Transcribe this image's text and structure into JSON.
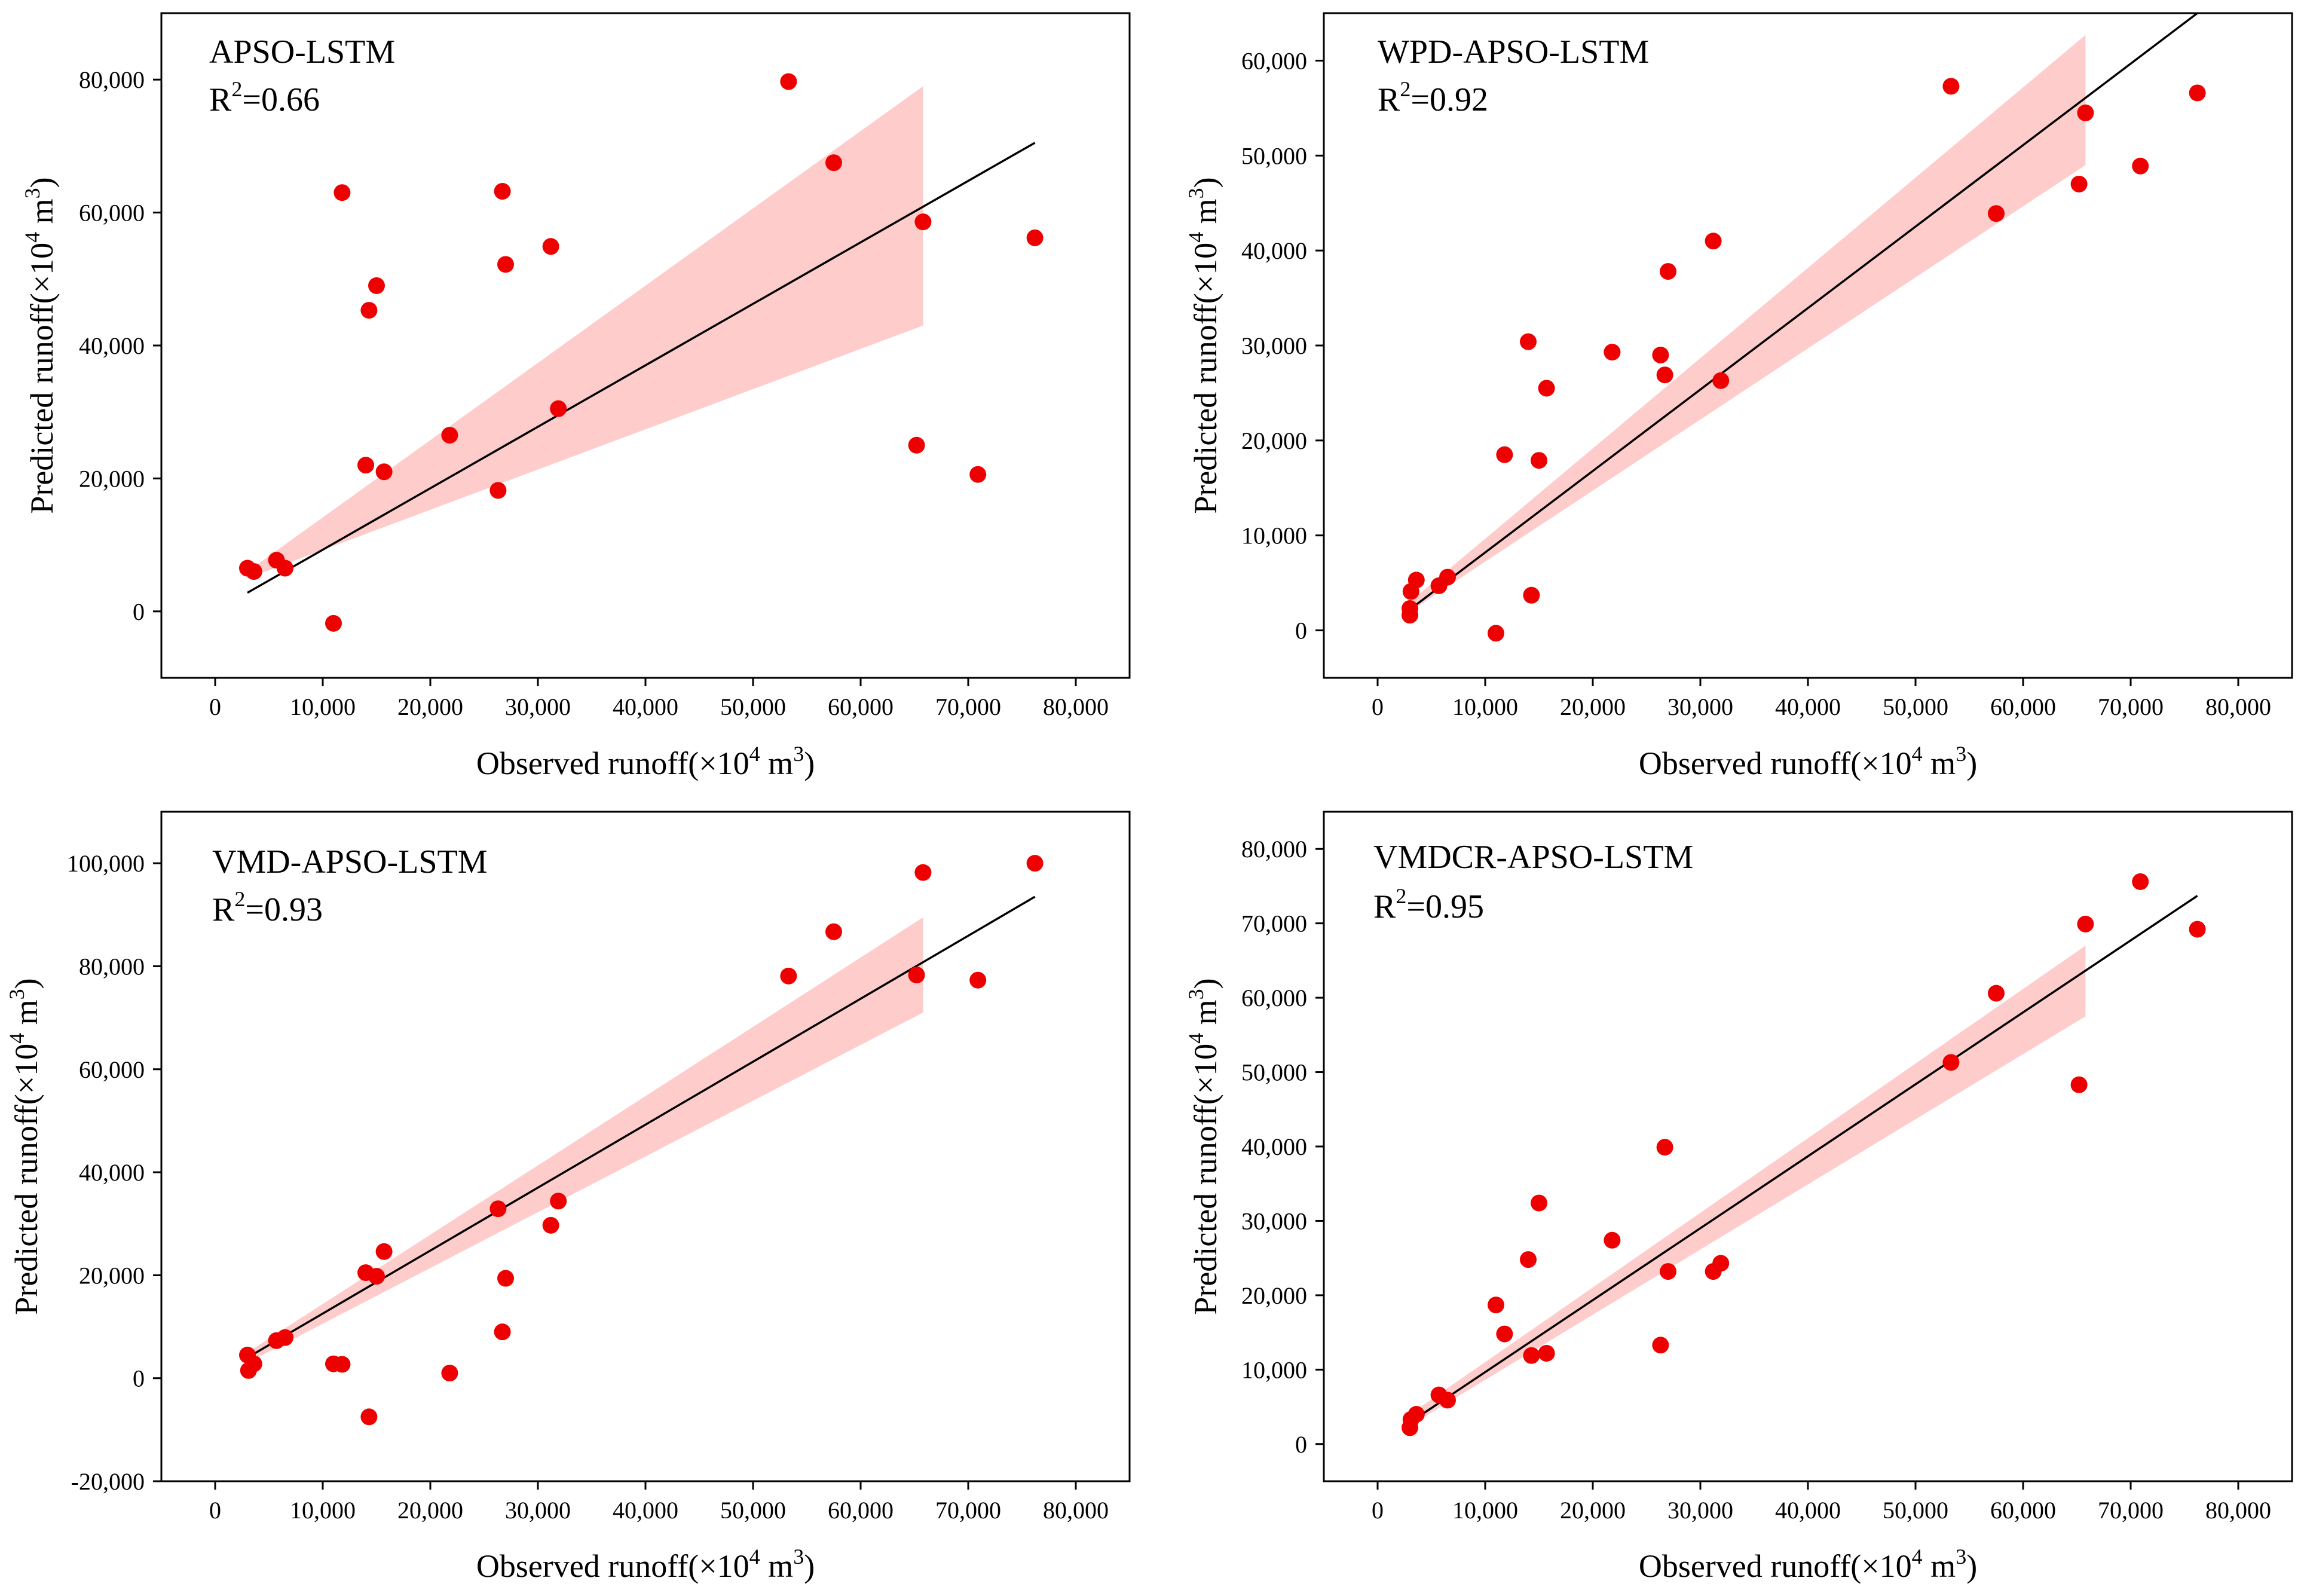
{
  "figure": {
    "point_color": "#ee0000",
    "band_color": "#ffcccc",
    "fit_line_color": "#000000"
  },
  "chart_data": [
    {
      "type": "scatter",
      "title": "APSO-LSTM",
      "r2_label": "R",
      "r2_sup": "2",
      "r2_value": "=0.66",
      "xlabel": "Observed runoff(×10",
      "xlabel_sup": "4",
      "xlabel_unit": " m",
      "xlabel_unit_sup": "3",
      "xlabel_close": ")",
      "ylabel": "Predicted runoff(×10",
      "ylabel_sup": "4",
      "ylabel_unit": " m",
      "ylabel_unit_sup": "3",
      "ylabel_close": ")",
      "xlim": [
        -5000,
        85000
      ],
      "ylim": [
        -10000,
        90000
      ],
      "xticks": [
        0,
        10000,
        20000,
        30000,
        40000,
        50000,
        60000,
        70000,
        80000
      ],
      "xtick_labels": [
        "0",
        "10,000",
        "20,000",
        "30,000",
        "40,000",
        "50,000",
        "60,000",
        "70,000",
        "80,000"
      ],
      "yticks": [
        0,
        20000,
        40000,
        60000,
        80000
      ],
      "ytick_labels": [
        "0",
        "20,000",
        "40,000",
        "60,000",
        "80,000"
      ],
      "x": [
        3000,
        3600,
        5700,
        6500,
        11000,
        11800,
        14000,
        14300,
        15000,
        15700,
        21800,
        26300,
        26700,
        27000,
        31200,
        31900,
        53300,
        57500,
        65200,
        65800,
        70900,
        76200
      ],
      "y": [
        6500,
        6000,
        7700,
        6500,
        -1800,
        63000,
        22000,
        45300,
        49000,
        21000,
        26500,
        18200,
        63200,
        52200,
        54900,
        30500,
        79700,
        67500,
        25000,
        58600,
        20600,
        56200
      ],
      "fit": {
        "x": [
          3000,
          76200
        ],
        "y": [
          2800,
          70500
        ]
      },
      "band": {
        "x_start": 3000,
        "x_end": 65800,
        "upper": [
          6000,
          79000
        ],
        "lower": [
          5000,
          43000
        ]
      }
    },
    {
      "type": "scatter",
      "title": "WPD-APSO-LSTM",
      "r2_label": "R",
      "r2_sup": "2",
      "r2_value": "=0.92",
      "xlabel": "Observed runoff(×10",
      "xlabel_sup": "4",
      "xlabel_unit": " m",
      "xlabel_unit_sup": "3",
      "xlabel_close": ")",
      "ylabel": "Predicted runoff(×10",
      "ylabel_sup": "4",
      "ylabel_unit": " m",
      "ylabel_unit_sup": "3",
      "ylabel_close": ")",
      "xlim": [
        -5000,
        85000
      ],
      "ylim": [
        -5000,
        65000
      ],
      "xticks": [
        0,
        10000,
        20000,
        30000,
        40000,
        50000,
        60000,
        70000,
        80000
      ],
      "xtick_labels": [
        "0",
        "10,000",
        "20,000",
        "30,000",
        "40,000",
        "50,000",
        "60,000",
        "70,000",
        "80,000"
      ],
      "yticks": [
        0,
        10000,
        20000,
        30000,
        40000,
        50000,
        60000
      ],
      "ytick_labels": [
        "0",
        "10,000",
        "20,000",
        "30,000",
        "40,000",
        "50,000",
        "60,000"
      ],
      "x": [
        3000,
        3000,
        3100,
        3600,
        5700,
        6500,
        11000,
        11800,
        14000,
        14300,
        15000,
        15700,
        21800,
        26300,
        26700,
        27000,
        31200,
        31900,
        53300,
        57500,
        65200,
        65800,
        70900,
        76200
      ],
      "y": [
        1600,
        2300,
        4100,
        5300,
        4700,
        5600,
        -300,
        18500,
        30400,
        3700,
        17900,
        25500,
        29300,
        29000,
        26900,
        37800,
        41000,
        26300,
        57300,
        43900,
        47000,
        54500,
        48900,
        56600
      ],
      "fit": {
        "x": [
          3000,
          76200
        ],
        "y": [
          2200,
          65000
        ]
      },
      "band": {
        "x_start": 3000,
        "x_end": 65800,
        "upper": [
          3000,
          62700
        ],
        "lower": [
          2000,
          49000
        ]
      }
    },
    {
      "type": "scatter",
      "title": "VMD-APSO-LSTM",
      "r2_label": "R",
      "r2_sup": "2",
      "r2_value": "=0.93",
      "xlabel": "Observed runoff(×10",
      "xlabel_sup": "4",
      "xlabel_unit": " m",
      "xlabel_unit_sup": "3",
      "xlabel_close": ")",
      "ylabel": "Predicted runoff(×10",
      "ylabel_sup": "4",
      "ylabel_unit": " m",
      "ylabel_unit_sup": "3",
      "ylabel_close": ")",
      "xlim": [
        -5000,
        85000
      ],
      "ylim": [
        -20000,
        110000
      ],
      "xticks": [
        0,
        10000,
        20000,
        30000,
        40000,
        50000,
        60000,
        70000,
        80000
      ],
      "xtick_labels": [
        "0",
        "10,000",
        "20,000",
        "30,000",
        "40,000",
        "50,000",
        "60,000",
        "70,000",
        "80,000"
      ],
      "yticks": [
        -20000,
        0,
        20000,
        40000,
        60000,
        80000,
        100000
      ],
      "ytick_labels": [
        "-20,000",
        "0",
        "20,000",
        "40,000",
        "60,000",
        "80,000",
        "100,000"
      ],
      "x": [
        3000,
        3100,
        3600,
        5700,
        6500,
        11000,
        11800,
        14000,
        14300,
        15000,
        15700,
        21800,
        26300,
        26700,
        27000,
        31200,
        31900,
        53300,
        57500,
        65200,
        65800,
        70900,
        76200
      ],
      "y": [
        4500,
        1500,
        2800,
        7300,
        7900,
        2800,
        2700,
        20500,
        -7500,
        19800,
        24600,
        1000,
        32900,
        9000,
        19400,
        29700,
        34400,
        78100,
        86700,
        78300,
        98200,
        77300,
        100000
      ],
      "fit": {
        "x": [
          3000,
          76200
        ],
        "y": [
          4000,
          93500
        ]
      },
      "band": {
        "x_start": 3000,
        "x_end": 65800,
        "upper": [
          5000,
          89500
        ],
        "lower": [
          3000,
          71000
        ]
      }
    },
    {
      "type": "scatter",
      "title": "VMDCR-APSO-LSTM",
      "r2_label": "R",
      "r2_sup": "2",
      "r2_value": "=0.95",
      "xlabel": "Observed runoff(×10",
      "xlabel_sup": "4",
      "xlabel_unit": " m",
      "xlabel_unit_sup": "3",
      "xlabel_close": ")",
      "ylabel": "Predicted runoff(×10",
      "ylabel_sup": "4",
      "ylabel_unit": " m",
      "ylabel_unit_sup": "3",
      "ylabel_close": ")",
      "xlim": [
        -5000,
        85000
      ],
      "ylim": [
        -5000,
        85000
      ],
      "xticks": [
        0,
        10000,
        20000,
        30000,
        40000,
        50000,
        60000,
        70000,
        80000
      ],
      "xtick_labels": [
        "0",
        "10,000",
        "20,000",
        "30,000",
        "40,000",
        "50,000",
        "60,000",
        "70,000",
        "80,000"
      ],
      "yticks": [
        0,
        10000,
        20000,
        30000,
        40000,
        50000,
        60000,
        70000,
        80000
      ],
      "ytick_labels": [
        "0",
        "10,000",
        "20,000",
        "30,000",
        "40,000",
        "50,000",
        "60,000",
        "70,000",
        "80,000"
      ],
      "x": [
        3000,
        3100,
        3600,
        5700,
        6500,
        11000,
        11800,
        14000,
        14300,
        15000,
        15700,
        21800,
        26300,
        26700,
        27000,
        31200,
        31900,
        53300,
        57500,
        65200,
        65800,
        70900,
        76200
      ],
      "y": [
        2200,
        3300,
        4000,
        6600,
        5900,
        18700,
        14800,
        24800,
        11900,
        32400,
        12200,
        27400,
        13300,
        39900,
        23200,
        23200,
        24300,
        51300,
        60600,
        48300,
        69900,
        75600,
        69200
      ],
      "fit": {
        "x": [
          3000,
          76200
        ],
        "y": [
          2900,
          73700
        ]
      },
      "band": {
        "x_start": 3000,
        "x_end": 65800,
        "upper": [
          4000,
          67000
        ],
        "lower": [
          2500,
          57500
        ]
      }
    }
  ]
}
